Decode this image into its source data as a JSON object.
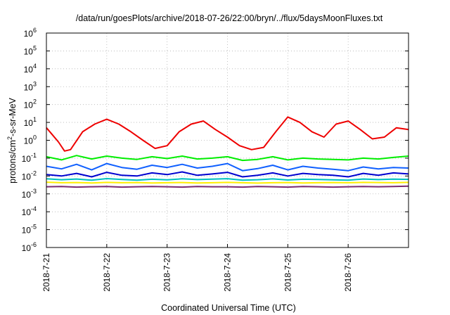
{
  "chart_data": {
    "type": "line",
    "title": "/data/run/goesPlots/archive/2018-07-26/22:00/bryn/../flux/5daysMoonFluxes.txt",
    "xlabel": "Coordinated Universal Time (UTC)",
    "ylabel_base": "protons/cm",
    "ylabel_sup": "2",
    "ylabel_rest": "-s-sr-MeV",
    "yscale": "log",
    "ylim_exp": [
      -6,
      6
    ],
    "xlim_days": [
      0,
      6
    ],
    "grid": true,
    "x_ticks": [
      "2018-7-21",
      "2018-7-22",
      "2018-7-23",
      "2018-7-24",
      "2018-7-25",
      "2018-7-26"
    ],
    "y_ticks": [
      {
        "exp": -6,
        "base": "10",
        "sup": "-6"
      },
      {
        "exp": -5,
        "base": "10",
        "sup": "-5"
      },
      {
        "exp": -4,
        "base": "10",
        "sup": "-4"
      },
      {
        "exp": -3,
        "base": "10",
        "sup": "-3"
      },
      {
        "exp": -2,
        "base": "10",
        "sup": "-2"
      },
      {
        "exp": -1,
        "base": "10",
        "sup": "-1"
      },
      {
        "exp": 0,
        "base": "10",
        "sup": "0"
      },
      {
        "exp": 1,
        "base": "10",
        "sup": "1"
      },
      {
        "exp": 2,
        "base": "10",
        "sup": "2"
      },
      {
        "exp": 3,
        "base": "10",
        "sup": "3"
      },
      {
        "exp": 4,
        "base": "10",
        "sup": "4"
      },
      {
        "exp": 5,
        "base": "10",
        "sup": "5"
      },
      {
        "exp": 6,
        "base": "10",
        "sup": "6"
      }
    ],
    "series": [
      {
        "color": "#ffee00",
        "x": [
          0,
          0.25,
          0.5,
          0.75,
          1,
          1.25,
          1.5,
          1.75,
          2,
          2.25,
          2.5,
          2.75,
          3,
          3.25,
          3.5,
          3.75,
          4,
          4.25,
          4.5,
          4.75,
          5,
          5.25,
          5.5,
          5.75,
          6
        ],
        "y": [
          0.0045,
          0.0042,
          0.0043,
          0.0041,
          0.0044,
          0.0042,
          0.0043,
          0.0041,
          0.0042,
          0.0043,
          0.0041,
          0.0042,
          0.0044,
          0.0042,
          0.004,
          0.0042,
          0.0043,
          0.0041,
          0.0042,
          0.0043,
          0.0042,
          0.0044,
          0.0043,
          0.0042,
          0.0044
        ]
      },
      {
        "color": "#00c0c0",
        "x": [
          0,
          0.25,
          0.5,
          0.75,
          1,
          1.25,
          1.5,
          1.75,
          2,
          2.25,
          2.5,
          2.75,
          3,
          3.25,
          3.5,
          3.75,
          4,
          4.25,
          4.5,
          4.75,
          5,
          5.25,
          5.5,
          5.75,
          6
        ],
        "y": [
          0.007,
          0.0062,
          0.0068,
          0.0058,
          0.0072,
          0.0064,
          0.0059,
          0.0066,
          0.0061,
          0.007,
          0.0063,
          0.0067,
          0.0071,
          0.0058,
          0.0062,
          0.0069,
          0.006,
          0.0066,
          0.0064,
          0.0061,
          0.0059,
          0.0068,
          0.0063,
          0.0067,
          0.0065
        ]
      },
      {
        "color": "#7a2a70",
        "x": [
          0,
          0.25,
          0.5,
          0.75,
          1,
          1.25,
          1.5,
          1.75,
          2,
          2.25,
          2.5,
          2.75,
          3,
          3.25,
          3.5,
          3.75,
          4,
          4.25,
          4.5,
          4.75,
          5,
          5.25,
          5.5,
          5.75,
          6
        ],
        "y": [
          0.0025,
          0.0026,
          0.0024,
          0.0025,
          0.0026,
          0.0024,
          0.0025,
          0.0026,
          0.0025,
          0.0024,
          0.0026,
          0.0025,
          0.0025,
          0.0024,
          0.0026,
          0.0025,
          0.0024,
          0.0026,
          0.0025,
          0.0024,
          0.0025,
          0.0026,
          0.0025,
          0.0026,
          0.0027
        ]
      },
      {
        "color": "#0000d0",
        "x": [
          0,
          0.25,
          0.5,
          0.75,
          1,
          1.25,
          1.5,
          1.75,
          2,
          2.25,
          2.5,
          2.75,
          3,
          3.25,
          3.5,
          3.75,
          4,
          4.25,
          4.5,
          4.75,
          5,
          5.25,
          5.5,
          5.75,
          6
        ],
        "y": [
          0.012,
          0.01,
          0.014,
          0.009,
          0.016,
          0.011,
          0.01,
          0.015,
          0.012,
          0.017,
          0.011,
          0.013,
          0.016,
          0.009,
          0.011,
          0.015,
          0.01,
          0.014,
          0.012,
          0.011,
          0.009,
          0.014,
          0.011,
          0.015,
          0.013
        ]
      },
      {
        "color": "#1060ff",
        "x": [
          0,
          0.25,
          0.5,
          0.75,
          1,
          1.25,
          1.5,
          1.75,
          2,
          2.25,
          2.5,
          2.75,
          3,
          3.25,
          3.5,
          3.75,
          4,
          4.25,
          4.5,
          4.75,
          5,
          5.25,
          5.5,
          5.75,
          6
        ],
        "y": [
          0.035,
          0.025,
          0.045,
          0.022,
          0.05,
          0.03,
          0.024,
          0.04,
          0.03,
          0.045,
          0.028,
          0.035,
          0.05,
          0.02,
          0.026,
          0.04,
          0.022,
          0.035,
          0.028,
          0.024,
          0.02,
          0.032,
          0.025,
          0.03,
          0.028
        ]
      },
      {
        "color": "#00ee00",
        "x": [
          0,
          0.25,
          0.5,
          0.75,
          1,
          1.25,
          1.5,
          1.75,
          2,
          2.25,
          2.5,
          2.75,
          3,
          3.25,
          3.5,
          3.75,
          4,
          4.25,
          4.5,
          4.75,
          5,
          5.25,
          5.5,
          5.75,
          6
        ],
        "y": [
          0.12,
          0.08,
          0.14,
          0.09,
          0.13,
          0.1,
          0.085,
          0.12,
          0.095,
          0.13,
          0.09,
          0.1,
          0.12,
          0.075,
          0.085,
          0.12,
          0.08,
          0.1,
          0.09,
          0.085,
          0.08,
          0.1,
          0.09,
          0.11,
          0.13
        ]
      },
      {
        "color": "#ee0000",
        "x": [
          0,
          0.1,
          0.2,
          0.3,
          0.4,
          0.6,
          0.8,
          1,
          1.2,
          1.4,
          1.6,
          1.8,
          2,
          2.2,
          2.4,
          2.6,
          2.8,
          3,
          3.2,
          3.4,
          3.6,
          3.8,
          4,
          4.2,
          4.4,
          4.6,
          4.8,
          5,
          5.2,
          5.4,
          5.6,
          5.8,
          6
        ],
        "y": [
          5,
          2,
          0.8,
          0.25,
          0.3,
          3,
          8,
          15,
          8,
          3,
          1,
          0.35,
          0.5,
          3,
          8,
          12,
          4,
          1.5,
          0.5,
          0.3,
          0.4,
          3,
          20,
          10,
          3,
          1.5,
          8,
          12,
          4,
          1.2,
          1.5,
          5,
          4
        ]
      }
    ]
  }
}
